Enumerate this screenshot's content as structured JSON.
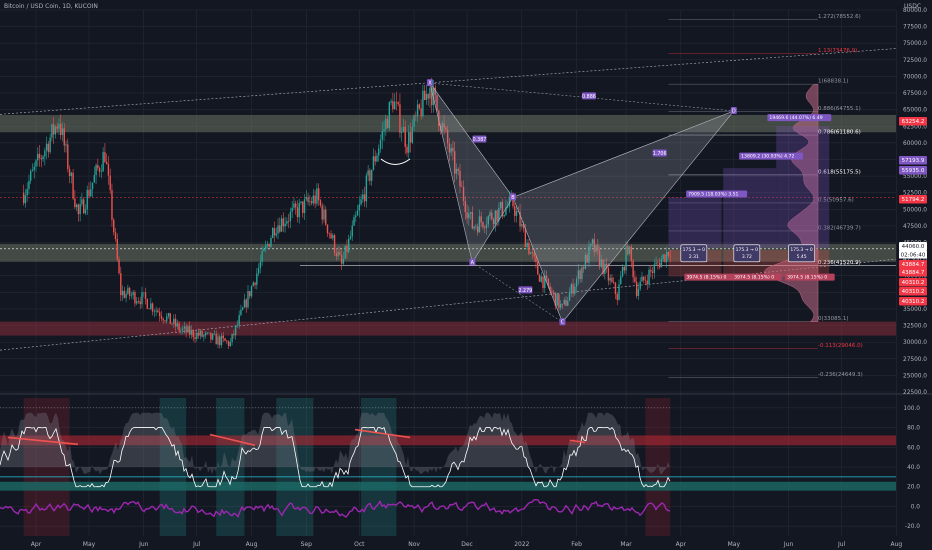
{
  "header": {
    "title": "Bitcoin / USD Coin, 1D, KUCOIN",
    "currency": "USDC",
    "countdown": "02:06:40"
  },
  "colors": {
    "background": "#131722",
    "up": "#26a69a",
    "down": "#ef5350",
    "grid": "#2a2e39",
    "axis_text": "#b2b5be",
    "zone_grey": "#6b7260",
    "zone_red": "#8b2d3c",
    "fib_red": "#f23645",
    "pattern_fill": "#9598a1",
    "label_purple": "#7e57c2",
    "volume_profile": "#c06a86",
    "osc_white": "#ffffff",
    "osc_purple": "#9c27b0",
    "osc_teal": "#26c6da",
    "osc_red_band": "#b22833"
  },
  "chart_data": {
    "type": "candlestick",
    "symbol": "Bitcoin / USD Coin",
    "timeframe": "1D",
    "exchange": "KUCOIN",
    "y_axis": {
      "ticks": [
        80000,
        77500,
        75000,
        72500,
        70000,
        67500,
        65000,
        62500,
        60000,
        57500,
        55000,
        52500,
        50000,
        47500,
        45000,
        42500,
        40000,
        37500,
        35000,
        32500,
        30000,
        27500,
        25000,
        22500
      ],
      "ylim": [
        22500,
        80000
      ]
    },
    "x_axis": {
      "ticks": [
        "Apr",
        "May",
        "Jun",
        "Jul",
        "Aug",
        "Sep",
        "Oct",
        "Nov",
        "Dec",
        "2022",
        "Feb",
        "Mar",
        "Apr",
        "May",
        "Jun",
        "Jul",
        "Aug"
      ]
    },
    "price_labels": [
      {
        "value": "63254.2",
        "color": "#f23645"
      },
      {
        "value": "57193.9",
        "color": "#7e57c2"
      },
      {
        "value": "55935.0",
        "color": "#7e57c2"
      },
      {
        "value": "51794.2",
        "color": "#f23645"
      },
      {
        "value": "44060.0",
        "color": "#ffffff"
      },
      {
        "value": "43884.7",
        "color": "#f23645"
      },
      {
        "value": "43884.7",
        "color": "#f23645"
      },
      {
        "value": "40310.2",
        "color": "#f23645"
      },
      {
        "value": "40310.2",
        "color": "#f23645"
      },
      {
        "value": "40310.2",
        "color": "#f23645"
      }
    ],
    "fib_levels": [
      {
        "label": "1.272(78552.6)",
        "value": 78552.6,
        "color": "#9598a1"
      },
      {
        "label": "1.13(73476.9)",
        "value": 73476.9,
        "color": "#f23645"
      },
      {
        "label": "1(68838.1)",
        "value": 68838.1,
        "color": "#9598a1"
      },
      {
        "label": "0.886(64755.1)",
        "value": 64755.1,
        "color": "#9598a1"
      },
      {
        "label": "0.786(61180.6)",
        "value": 61180.6,
        "color": "#ffffff"
      },
      {
        "label": "0.618(55175.5)",
        "value": 55175.5,
        "color": "#ffffff"
      },
      {
        "label": "0.5(50957.6)",
        "value": 50957.6,
        "color": "#9598a1"
      },
      {
        "label": "0.382(46739.7)",
        "value": 46739.7,
        "color": "#9598a1"
      },
      {
        "label": "0.236(41520.9)",
        "value": 41520.9,
        "color": "#ffffff"
      },
      {
        "label": "0(33085.1)",
        "value": 33085.1,
        "color": "#9598a1"
      },
      {
        "label": "-0.113(29046.0)",
        "value": 29046.0,
        "color": "#f23645"
      },
      {
        "label": "-0.236(24649.3)",
        "value": 24649.3,
        "color": "#9598a1"
      }
    ],
    "zones": [
      {
        "from": 61600,
        "to": 64200,
        "color": "#6b7260"
      },
      {
        "from": 42100,
        "to": 44800,
        "color": "#6b7260"
      },
      {
        "from": 31000,
        "to": 33100,
        "color": "#8b2d3c"
      }
    ],
    "pattern": {
      "points": [
        {
          "label": "X",
          "date": "2021-11-10",
          "price": 69000
        },
        {
          "label": "A",
          "date": "2021-12-04",
          "price": 42000
        },
        {
          "label": "B",
          "date": "2021-12-27",
          "price": 51800
        },
        {
          "label": "C",
          "date": "2022-01-24",
          "price": 33000
        },
        {
          "label": "D",
          "date": "2022-05-01",
          "price": 64800
        }
      ],
      "ratios": [
        {
          "label": "0.886",
          "date": "2022-02-08",
          "price": 67000
        },
        {
          "label": "0.387",
          "date": "2021-12-08",
          "price": 60500
        },
        {
          "label": "1.706",
          "date": "2022-03-20",
          "price": 58400
        },
        {
          "label": "2.279",
          "date": "2022-01-03",
          "price": 37800
        }
      ]
    },
    "position_labels": [
      {
        "text": "19469.6 (44.07%) 6.49",
        "date": "2022-05-20",
        "price": 63800
      },
      {
        "text": "13809.2 (30.93%) 4.72",
        "date": "2022-05-04",
        "price": 58000
      },
      {
        "text": "7909.5 (18.03%) 3.51",
        "date": "2022-04-04",
        "price": 52300
      },
      {
        "text": "3974.5 (8.15%) 0",
        "date": "2022-04-03",
        "price": 39800
      },
      {
        "text": "3974.5 (8.15%) 0",
        "date": "2022-04-30",
        "price": 39800
      },
      {
        "text": "3974.5 (8.15%) 0",
        "date": "2022-05-30",
        "price": 39800
      }
    ],
    "rr_boxes": [
      {
        "top": "175.3 → 0",
        "bottom": "2.31",
        "date": "2022-04-01",
        "price": 44200
      },
      {
        "top": "175.3 → 0",
        "bottom": "3.72",
        "date": "2022-05-01",
        "price": 44200
      },
      {
        "top": "175.3 → 0",
        "bottom": "5.45",
        "date": "2022-06-01",
        "price": 44200
      }
    ],
    "oscillator": {
      "ticks": [
        100,
        80,
        60,
        40,
        20,
        0,
        -20
      ],
      "ylim": [
        -30,
        110
      ],
      "levels": [
        {
          "value": 70,
          "color": "#b22833"
        },
        {
          "value": 30,
          "color": "#26c6da"
        }
      ]
    }
  }
}
